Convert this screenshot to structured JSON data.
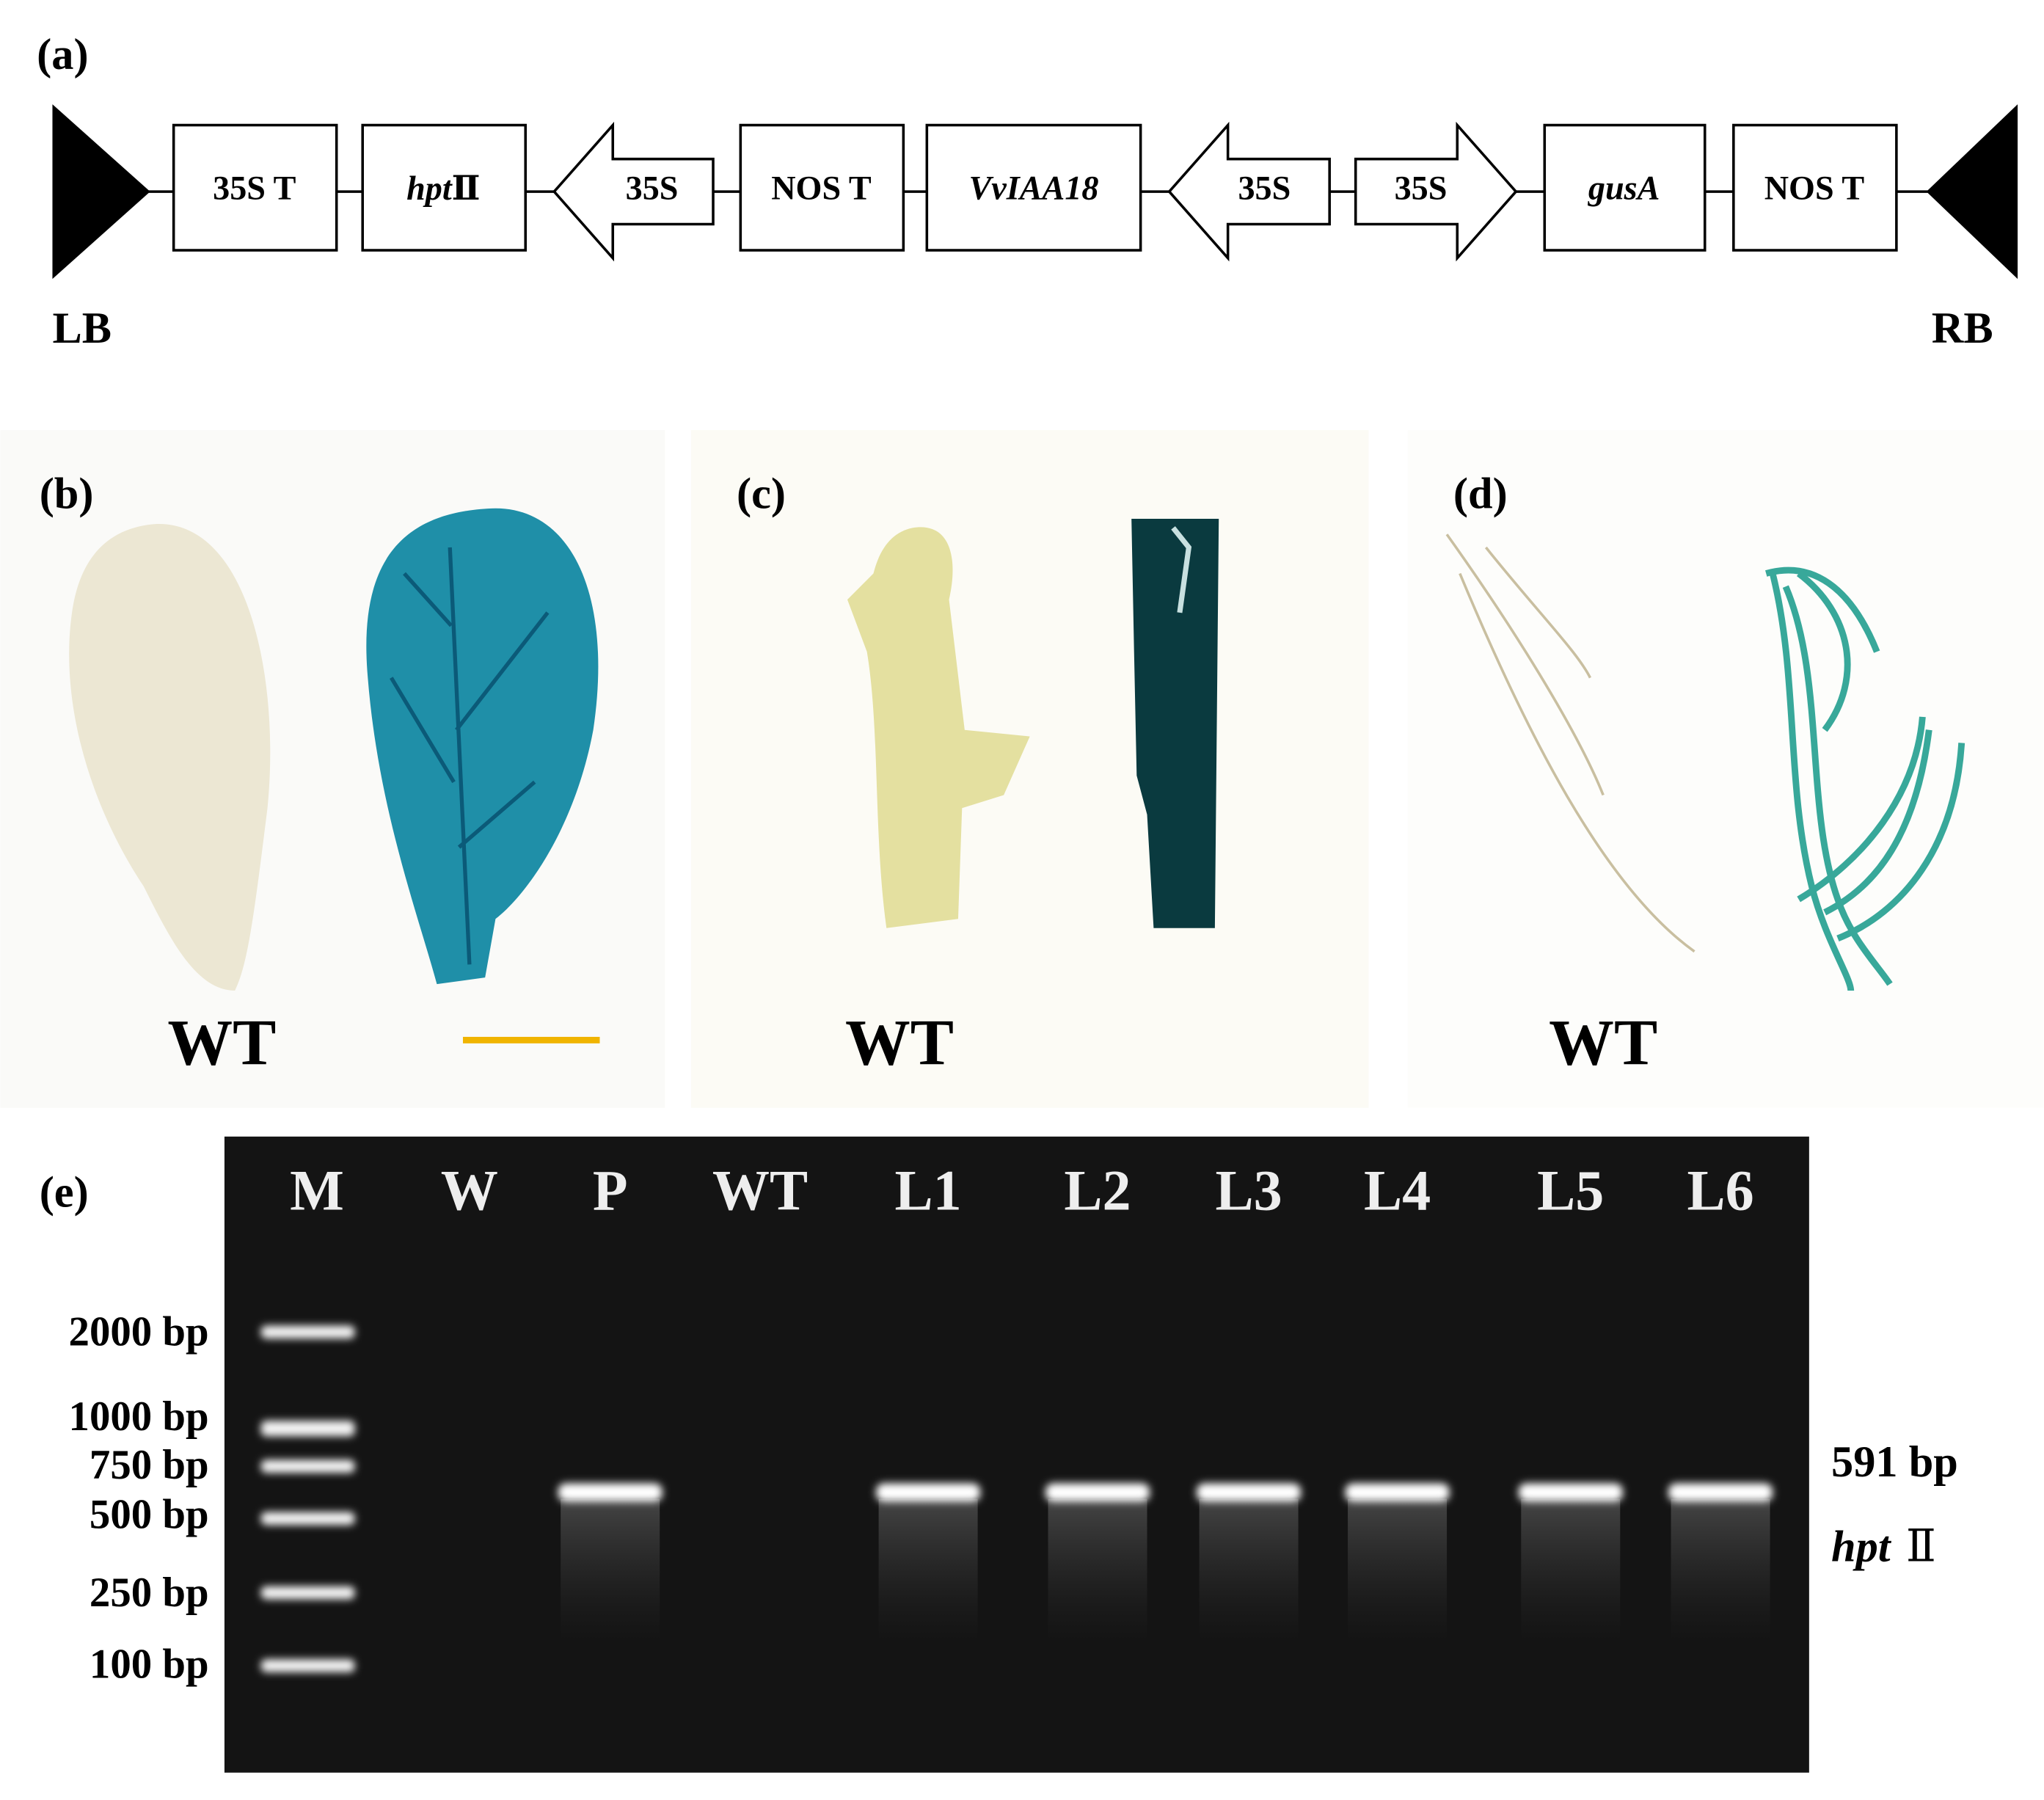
{
  "panel_a": {
    "label": "(a)",
    "left_border": "LB",
    "right_border": "RB",
    "elements": [
      "35S T",
      {
        "italic": "hpt",
        "suffix": "Ⅱ"
      },
      "35S",
      "NOS T",
      "VvIAA18",
      "35S",
      "35S",
      "gusA",
      "NOS T"
    ]
  },
  "panel_b": {
    "label": "(b)",
    "caption": "WT"
  },
  "panel_c": {
    "label": "(c)",
    "caption": "WT"
  },
  "panel_d": {
    "label": "(d)",
    "caption": "WT"
  },
  "panel_e": {
    "label": "(e)",
    "lanes": [
      "M",
      "W",
      "P",
      "WT",
      "L1",
      "L2",
      "L3",
      "L4",
      "L5",
      "L6"
    ],
    "markers": [
      "2000 bp",
      "1000 bp",
      "750 bp",
      "500 bp",
      "250 bp",
      "100 bp"
    ],
    "band_size": "591 bp",
    "band_gene": {
      "italic": "hpt",
      "suffix": "Ⅱ"
    }
  }
}
